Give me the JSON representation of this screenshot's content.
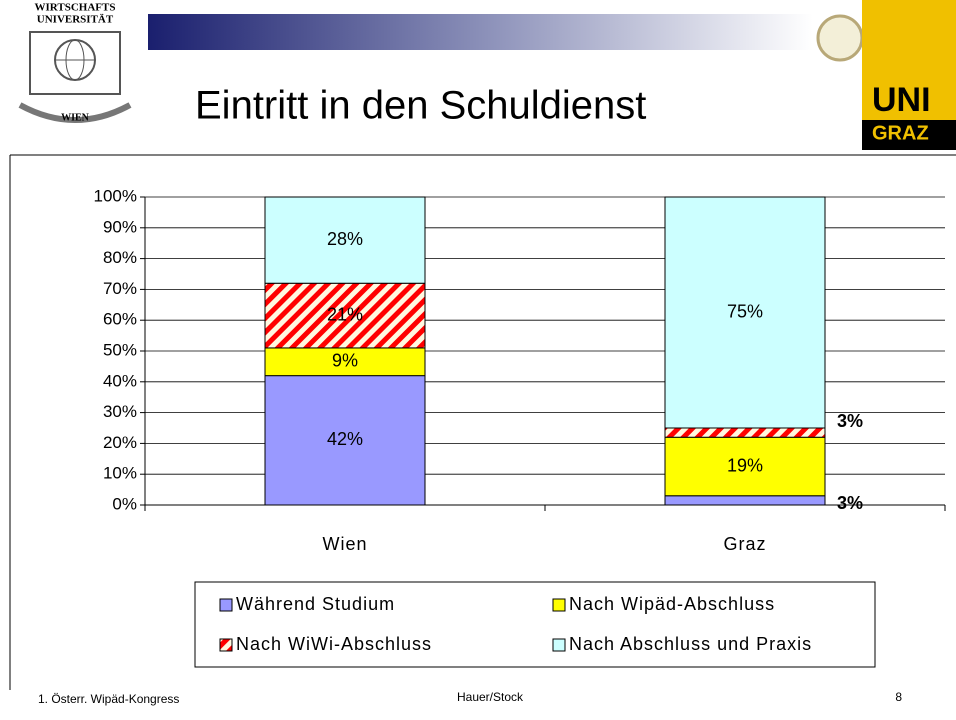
{
  "header": {
    "title": "Eintritt in den Schuldienst",
    "logo_left": [
      "WIRTSCHAFTS",
      "UNIVERSITÄT",
      "WIEN"
    ],
    "logo_right": [
      "UNI",
      "GRAZ"
    ]
  },
  "footer": {
    "left": "1. Österr. Wipäd-Kongress",
    "center": "Hauer/Stock",
    "page": "8"
  },
  "chart_data": {
    "type": "stacked_bar",
    "categories": [
      "Wien",
      "Graz"
    ],
    "series": [
      {
        "name": "Während Studium",
        "color": "#9999ff",
        "values": [
          42,
          3
        ],
        "value_labels": [
          "42%",
          "3%"
        ]
      },
      {
        "name": "Nach Wipäd-Abschluss",
        "color": "#ffff00",
        "values": [
          9,
          19
        ],
        "value_labels": [
          "9%",
          "19%"
        ]
      },
      {
        "name": "Nach WiWi-Abschluss",
        "color": "#ff0000",
        "pattern": "diagonal-stripes",
        "values": [
          21,
          3
        ],
        "value_labels": [
          "21%",
          "3%"
        ]
      },
      {
        "name": "Nach Abschluss und Praxis",
        "color": "#ccffff",
        "values": [
          28,
          75
        ],
        "value_labels": [
          "28%",
          "75%"
        ]
      }
    ],
    "ylim": [
      0,
      100
    ],
    "yticks": [
      {
        "value": 0,
        "label": "0%"
      },
      {
        "value": 10,
        "label": "10%"
      },
      {
        "value": 20,
        "label": "20%"
      },
      {
        "value": 30,
        "label": "30%"
      },
      {
        "value": 40,
        "label": "40%"
      },
      {
        "value": 50,
        "label": "50%"
      },
      {
        "value": 60,
        "label": "60%"
      },
      {
        "value": 70,
        "label": "70%"
      },
      {
        "value": 80,
        "label": "80%"
      },
      {
        "value": 90,
        "label": "90%"
      },
      {
        "value": 100,
        "label": "100%"
      }
    ],
    "grid": true,
    "legend": "bottom"
  }
}
